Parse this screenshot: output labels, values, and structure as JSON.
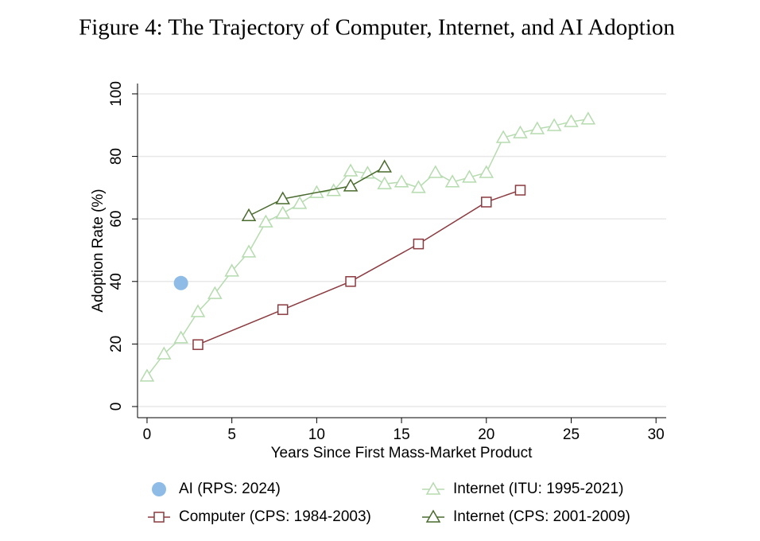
{
  "chart_data": {
    "type": "line",
    "title": "Figure 4: The Trajectory of Computer, Internet, and AI Adoption",
    "x_label": "Years Since First Mass-Market Product",
    "y_label": "Adoption Rate  (%)",
    "xlim": [
      -0.56,
      30.6
    ],
    "xticks": [
      0,
      5,
      10,
      15,
      20,
      25,
      30
    ],
    "ylim": [
      -3.56,
      103.3
    ],
    "yticks": [
      0,
      20,
      40,
      60,
      80,
      100
    ],
    "grid": true,
    "legend": "bottom",
    "series": [
      {
        "name": "AI (RPS: 2024)",
        "color": "#8fbce6",
        "marker": "circle",
        "x": [
          2
        ],
        "values": [
          39.5
        ]
      },
      {
        "name": "Internet (ITU: 1995-2021)",
        "color": "#b5dbae",
        "marker": "triangle",
        "x": [
          0,
          1,
          2,
          3,
          4,
          5,
          6,
          7,
          8,
          9,
          10,
          11,
          12,
          13,
          14,
          15,
          16,
          17,
          18,
          19,
          20,
          21,
          22,
          23,
          24,
          25,
          26
        ],
        "values": [
          9.7,
          16.8,
          21.9,
          30.3,
          36.1,
          43.3,
          49.4,
          59,
          61.8,
          64.9,
          68.4,
          69,
          75.3,
          74.6,
          71.2,
          71.8,
          70,
          74.8,
          71.8,
          73.3,
          74.8,
          86,
          87.5,
          88.8,
          89.8,
          91.1,
          91.9
        ]
      },
      {
        "name": "Computer (CPS: 1984-2003)",
        "color": "#8b3a3f",
        "marker": "square",
        "x": [
          3,
          8,
          12,
          16,
          20,
          22
        ],
        "values": [
          19.8,
          31,
          40,
          52,
          65.4,
          69.2
        ]
      },
      {
        "name": "Internet (CPS: 2001-2009)",
        "color": "#4a6b2e",
        "marker": "triangle",
        "x": [
          6,
          8,
          12,
          14
        ],
        "values": [
          61,
          66.4,
          70.5,
          76.6
        ]
      }
    ]
  }
}
